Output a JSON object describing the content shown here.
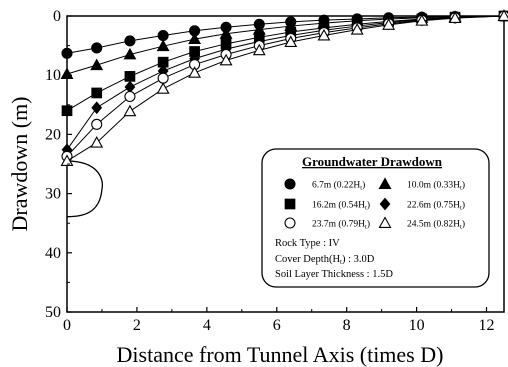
{
  "chart_data": {
    "type": "scatter",
    "title": "",
    "xlabel": "Distance from Tunnel Axis (times D)",
    "ylabel": "Drawdown (m)",
    "xlim": [
      0,
      12.5
    ],
    "ylim": [
      0,
      50
    ],
    "y_inverted": true,
    "x_ticks": [
      "0",
      "2",
      "4",
      "6",
      "8",
      "10",
      "12"
    ],
    "y_ticks": [
      "0",
      "10",
      "20",
      "30",
      "40",
      "50"
    ],
    "x_tick_values": [
      0,
      2,
      4,
      6,
      8,
      10,
      12
    ],
    "y_tick_values": [
      0,
      10,
      20,
      30,
      40,
      50
    ],
    "grid": false,
    "x": [
      0,
      0.85,
      1.8,
      2.75,
      3.65,
      4.55,
      5.5,
      6.4,
      7.35,
      8.3,
      9.2,
      10.15,
      11.1,
      12.5
    ],
    "legend_title": "Groundwater Drawdown",
    "legend_position": "right",
    "series": [
      {
        "name": "6.7m (0.22H",
        "name_sub": "t",
        "name_end": ")",
        "marker": "circle-filled",
        "values": [
          6.3,
          5.4,
          4.2,
          3.3,
          2.5,
          1.9,
          1.4,
          1.0,
          0.7,
          0.5,
          0.3,
          0.2,
          0.1,
          0
        ]
      },
      {
        "name": "10.0m (0.33H",
        "name_sub": "t",
        "name_end": ")",
        "marker": "triangle-filled",
        "values": [
          9.8,
          8.3,
          6.5,
          5.1,
          3.9,
          3.0,
          2.3,
          1.7,
          1.2,
          0.8,
          0.5,
          0.3,
          0.15,
          0
        ]
      },
      {
        "name": "16.2m (0.54H",
        "name_sub": "t",
        "name_end": ")",
        "marker": "square-filled",
        "values": [
          16.0,
          13.0,
          10.2,
          7.8,
          6.0,
          4.7,
          3.6,
          2.7,
          2.0,
          1.4,
          0.9,
          0.5,
          0.2,
          0
        ]
      },
      {
        "name": "22.6m (0.75H",
        "name_sub": "t",
        "name_end": ")",
        "marker": "diamond-filled",
        "values": [
          22.6,
          15.5,
          12.0,
          9.3,
          7.2,
          5.6,
          4.3,
          3.3,
          2.4,
          1.7,
          1.1,
          0.6,
          0.25,
          0
        ]
      },
      {
        "name": "23.7m (0.79H",
        "name_sub": "t",
        "name_end": ")",
        "marker": "circle-open",
        "values": [
          23.7,
          18.3,
          13.6,
          10.5,
          8.2,
          6.5,
          5.0,
          3.8,
          2.8,
          2.0,
          1.3,
          0.7,
          0.3,
          0
        ]
      },
      {
        "name": "24.5m (0.82H",
        "name_sub": "t",
        "name_end": ")",
        "marker": "triangle-open",
        "values": [
          24.5,
          21.4,
          16.1,
          12.3,
          9.6,
          7.5,
          5.8,
          4.4,
          3.3,
          2.3,
          1.5,
          0.8,
          0.35,
          0
        ]
      }
    ],
    "annotations": {
      "rock_type": "Rock Type : IV",
      "cover_depth_a": "Cover Depth(H",
      "cover_depth_sub": "t",
      "cover_depth_b": ") : 3.0D",
      "soil_layer": "Soil Layer Thickness : 1.5D"
    },
    "tunnel_shape": {
      "y_top": 24.5,
      "y_bottom": 33.9,
      "half_width_x": 1.0
    }
  }
}
